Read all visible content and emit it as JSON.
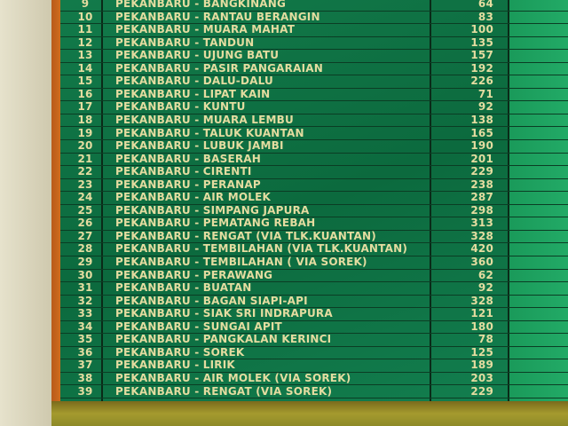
{
  "board": {
    "rows": [
      {
        "no": "9",
        "route": "PEKANBARU - BANGKINANG",
        "km": "64"
      },
      {
        "no": "10",
        "route": "PEKANBARU - RANTAU BERANGIN",
        "km": "83"
      },
      {
        "no": "11",
        "route": "PEKANBARU - MUARA MAHAT",
        "km": "100"
      },
      {
        "no": "12",
        "route": "PEKANBARU - TANDUN",
        "km": "135"
      },
      {
        "no": "13",
        "route": "PEKANBARU - UJUNG BATU",
        "km": "157"
      },
      {
        "no": "14",
        "route": "PEKANBARU - PASIR PANGARAIAN",
        "km": "192"
      },
      {
        "no": "15",
        "route": "PEKANBARU - DALU-DALU",
        "km": "226"
      },
      {
        "no": "16",
        "route": "PEKANBARU - LIPAT KAIN",
        "km": "71"
      },
      {
        "no": "17",
        "route": "PEKANBARU - KUNTU",
        "km": "92"
      },
      {
        "no": "18",
        "route": "PEKANBARU - MUARA LEMBU",
        "km": "138"
      },
      {
        "no": "19",
        "route": "PEKANBARU - TALUK KUANTAN",
        "km": "165"
      },
      {
        "no": "20",
        "route": "PEKANBARU - LUBUK JAMBI",
        "km": "190"
      },
      {
        "no": "21",
        "route": "PEKANBARU - BASERAH",
        "km": "201"
      },
      {
        "no": "22",
        "route": "PEKANBARU - CIRENTI",
        "km": "229"
      },
      {
        "no": "23",
        "route": "PEKANBARU - PERANAP",
        "km": "238"
      },
      {
        "no": "24",
        "route": "PEKANBARU - AIR MOLEK",
        "km": "287"
      },
      {
        "no": "25",
        "route": "PEKANBARU - SIMPANG JAPURA",
        "km": "298"
      },
      {
        "no": "26",
        "route": "PEKANBARU - PEMATANG REBAH",
        "km": "313"
      },
      {
        "no": "27",
        "route": "PEKANBARU - RENGAT (VIA TLK.KUANTAN)",
        "km": "328"
      },
      {
        "no": "28",
        "route": "PEKANBARU - TEMBILAHAN (VIA TLK.KUANTAN)",
        "km": "420"
      },
      {
        "no": "29",
        "route": "PEKANBARU - TEMBILAHAN ( VIA SOREK)",
        "km": "360"
      },
      {
        "no": "30",
        "route": "PEKANBARU - PERAWANG",
        "km": "62"
      },
      {
        "no": "31",
        "route": "PEKANBARU - BUATAN",
        "km": "92"
      },
      {
        "no": "32",
        "route": "PEKANBARU - BAGAN SIAPI-API",
        "km": "328"
      },
      {
        "no": "33",
        "route": "PEKANBARU - SIAK SRI INDRAPURA",
        "km": "121"
      },
      {
        "no": "34",
        "route": "PEKANBARU - SUNGAI APIT",
        "km": "180"
      },
      {
        "no": "35",
        "route": "PEKANBARU - PANGKALAN KERINCI",
        "km": "78"
      },
      {
        "no": "36",
        "route": "PEKANBARU - SOREK",
        "km": "125"
      },
      {
        "no": "37",
        "route": "PEKANBARU - LIRIK",
        "km": "189"
      },
      {
        "no": "38",
        "route": "PEKANBARU - AIR MOLEK (VIA SOREK)",
        "km": "203"
      },
      {
        "no": "39",
        "route": "PEKANBARU - RENGAT (VIA SOREK)",
        "km": "229"
      }
    ]
  },
  "colors": {
    "board": "#0c6a3e",
    "text": "#e4dca0",
    "frame": "#d4701e"
  }
}
